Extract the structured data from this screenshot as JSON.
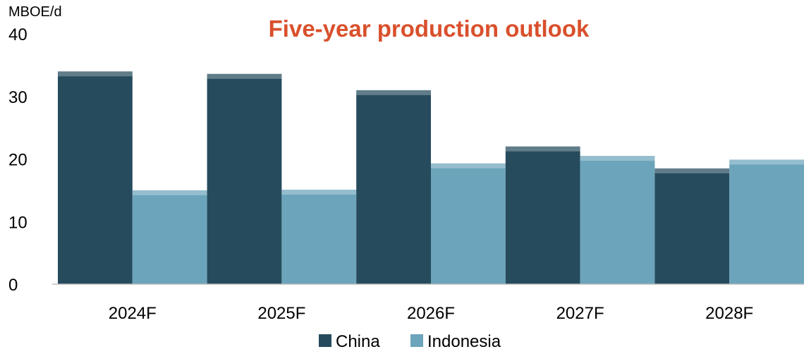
{
  "chart_data": {
    "type": "bar",
    "title": "Five-year production outlook",
    "ylabel": "MBOE/d",
    "xlabel": "",
    "categories": [
      "2024F",
      "2025F",
      "2026F",
      "2027F",
      "2028F"
    ],
    "series": [
      {
        "name": "China",
        "values": [
          34,
          33.6,
          31,
          22,
          18.5
        ],
        "color": "#264b5d"
      },
      {
        "name": "Indonesia",
        "values": [
          15,
          15.1,
          19.3,
          20.5,
          19.9
        ],
        "color": "#6ba4bb"
      }
    ],
    "ylim": [
      0,
      40
    ],
    "yticks": [
      "0",
      "10",
      "20",
      "30",
      "40"
    ],
    "grid": false,
    "legend": "bottom-center",
    "title_color": "#d9502c"
  }
}
